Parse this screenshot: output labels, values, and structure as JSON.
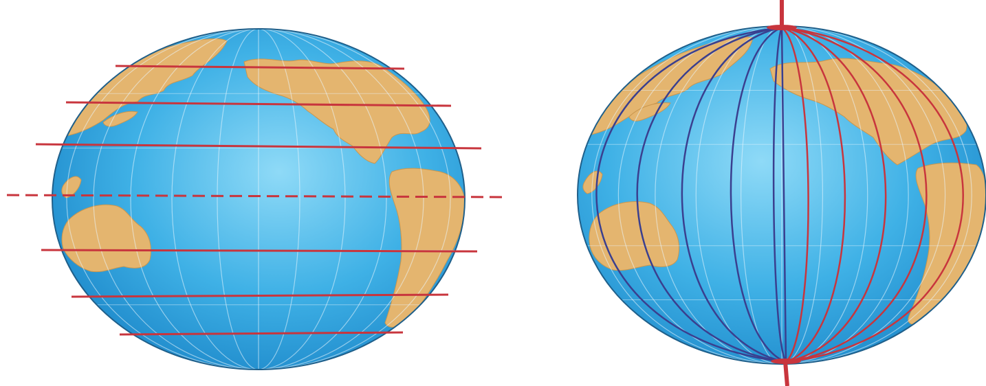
{
  "figure": {
    "panels": [
      {
        "id": "parallels",
        "subject": "globe",
        "emphasis": "latitude-lines",
        "latitude_line_count": 7,
        "equator_style": "dashed"
      },
      {
        "id": "meridians",
        "subject": "globe",
        "emphasis": "longitude-lines",
        "has_axis": true
      }
    ]
  },
  "colors": {
    "ocean_light": "#7fd3f5",
    "ocean_mid": "#3fb1e6",
    "ocean_dark": "#1c87c9",
    "land": "#e4b56f",
    "land_edge": "#c9964e",
    "line_red": "#c8353d",
    "meridian_left": "#3a3f8f",
    "grid_white": "#e9f6fd",
    "outline": "#1f5f8a"
  }
}
